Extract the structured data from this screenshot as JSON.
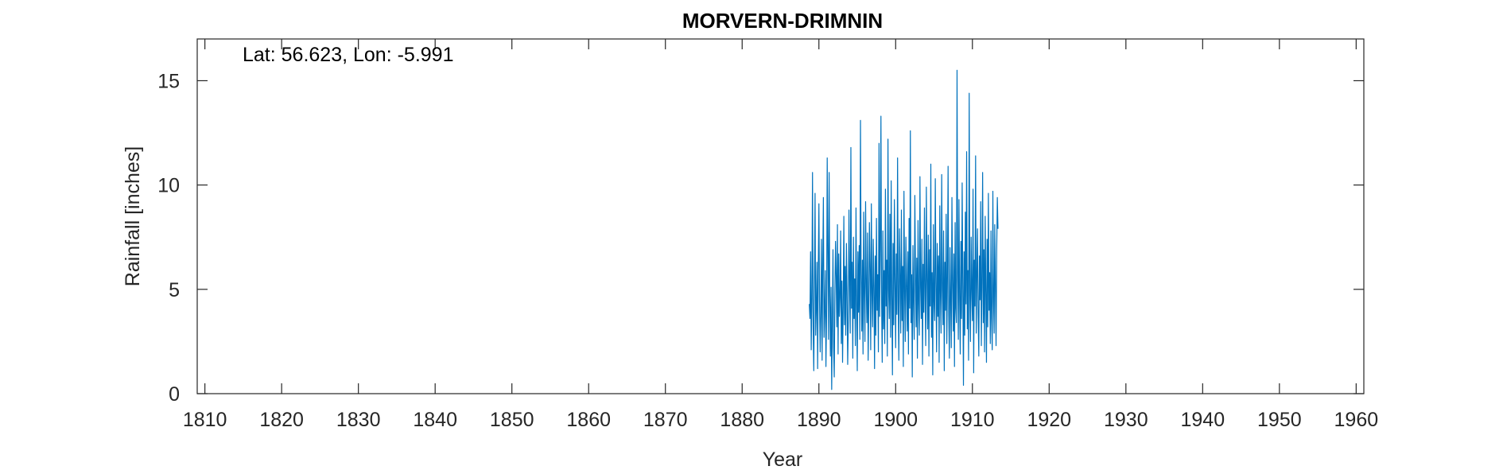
{
  "chart_data": {
    "type": "line",
    "title": "MORVERN-DRIMNIN",
    "annotation": "Lat: 56.623, Lon: -5.991",
    "xlabel": "Year",
    "ylabel": "Rainfall [inches]",
    "xlim": [
      1809,
      1961
    ],
    "ylim": [
      0,
      17
    ],
    "xticks": [
      1810,
      1820,
      1830,
      1840,
      1850,
      1860,
      1870,
      1880,
      1890,
      1900,
      1910,
      1920,
      1930,
      1940,
      1950,
      1960
    ],
    "yticks": [
      0,
      5,
      10,
      15
    ],
    "grid": false,
    "box": true,
    "series": [
      {
        "line_color": "#0072BD",
        "x_start": 1888.75,
        "x_step": 0.08333,
        "values": [
          4.3,
          3.6,
          6.8,
          2.1,
          4.6,
          10.6,
          3.1,
          1.1,
          5.2,
          9.6,
          2.8,
          4.1,
          6.3,
          1.2,
          5.8,
          9.1,
          4.4,
          2.0,
          3.9,
          7.4,
          1.6,
          6.2,
          9.4,
          2.7,
          4.0,
          5.9,
          1.3,
          3.8,
          11.3,
          6.8,
          2.6,
          10.6,
          4.7,
          1.8,
          5.1,
          0.2,
          3.4,
          6.9,
          2.2,
          0.8,
          4.8,
          7.3,
          5.6,
          3.2,
          8.1,
          1.9,
          6.7,
          3.7,
          4.6,
          7.8,
          2.4,
          5.4,
          1.5,
          4.2,
          8.5,
          3.3,
          6.1,
          2.8,
          7.2,
          4.9,
          1.4,
          3.5,
          8.8,
          5.2,
          2.9,
          11.8,
          4.1,
          6.3,
          1.7,
          7.5,
          3.6,
          5.5,
          2.3,
          8.9,
          4.4,
          1.1,
          6.8,
          3.9,
          7.1,
          2.6,
          13.1,
          5.8,
          3.0,
          6.4,
          1.9,
          8.7,
          4.7,
          2.5,
          9.2,
          5.3,
          3.4,
          7.7,
          1.6,
          4.3,
          8.2,
          6.0,
          2.1,
          9.1,
          4.8,
          3.2,
          7.4,
          5.1,
          1.2,
          6.6,
          2.8,
          8.4,
          4.0,
          5.7,
          2.0,
          12.0,
          3.7,
          6.9,
          13.3,
          4.5,
          1.5,
          7.8,
          3.1,
          5.9,
          2.4,
          9.8,
          4.2,
          6.4,
          1.8,
          12.2,
          5.0,
          3.6,
          8.6,
          2.7,
          10.2,
          4.6,
          0.9,
          7.2,
          3.3,
          9.3,
          5.4,
          2.2,
          6.7,
          3.8,
          11.3,
          4.4,
          1.6,
          7.9,
          5.6,
          2.9,
          8.8,
          3.5,
          6.1,
          1.3,
          9.7,
          4.9,
          2.5,
          7.5,
          5.2,
          3.0,
          6.8,
          1.9,
          8.4,
          4.1,
          12.6,
          3.4,
          5.7,
          0.8,
          7.1,
          4.6,
          2.6,
          9.5,
          5.9,
          3.2,
          6.5,
          1.7,
          8.3,
          4.3,
          2.8,
          10.4,
          5.1,
          3.6,
          7.4,
          1.4,
          6.2,
          3.9,
          8.9,
          4.7,
          2.3,
          9.9,
          5.5,
          3.1,
          7.6,
          1.8,
          6.9,
          4.2,
          11.0,
          2.7,
          5.8,
          0.9,
          8.1,
          4.4,
          3.5,
          10.3,
          5.3,
          2.0,
          7.2,
          3.7,
          6.6,
          1.5,
          9.0,
          4.8,
          2.9,
          10.5,
          5.0,
          3.3,
          7.8,
          1.1,
          6.3,
          4.0,
          8.6,
          2.4,
          5.6,
          10.9,
          3.8,
          1.7,
          7.0,
          4.5,
          2.2,
          9.4,
          5.4,
          3.0,
          6.7,
          1.3,
          8.2,
          4.1,
          3.4,
          15.5,
          5.7,
          2.6,
          9.3,
          4.6,
          1.9,
          7.3,
          3.6,
          10.1,
          5.2,
          0.4,
          6.8,
          2.8,
          8.7,
          4.3,
          11.6,
          3.1,
          5.9,
          1.6,
          14.4,
          4.7,
          2.5,
          7.5,
          5.0,
          3.5,
          9.8,
          1.0,
          6.4,
          4.2,
          11.4,
          2.9,
          5.5,
          7.9,
          3.8,
          1.8,
          6.6,
          4.5,
          9.2,
          2.3,
          5.3,
          10.6,
          3.4,
          6.9,
          2.0,
          8.5,
          4.9,
          1.5,
          7.4,
          3.2,
          9.6,
          4.0,
          5.8,
          2.4,
          7.8,
          3.6,
          2.1,
          9.7,
          4.6,
          2.9,
          8.1,
          5.1,
          2.3,
          6.9,
          9.4,
          7.9
        ]
      }
    ]
  }
}
